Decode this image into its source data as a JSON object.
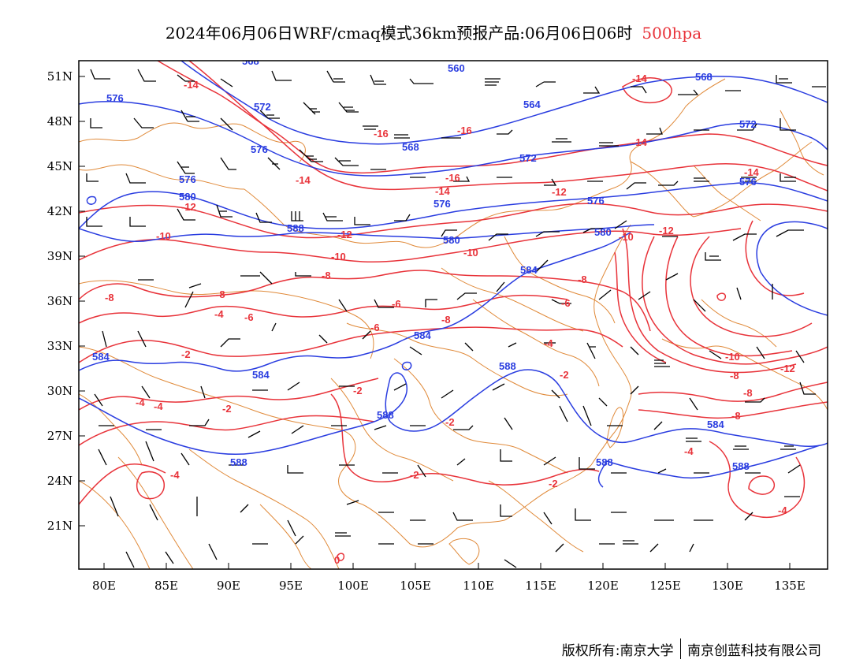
{
  "title": {
    "main": "2024年06月06日WRF/cmaq模式36km预报产品:06月06日06时",
    "level": "500hpa",
    "level_color": "#e8333a"
  },
  "axes": {
    "y_labels": [
      "51N",
      "48N",
      "45N",
      "42N",
      "39N",
      "36N",
      "33N",
      "30N",
      "27N",
      "24N",
      "21N"
    ],
    "x_labels": [
      "80E",
      "85E",
      "90E",
      "95E",
      "100E",
      "105E",
      "110E",
      "115E",
      "120E",
      "125E",
      "130E",
      "135E"
    ]
  },
  "colors": {
    "temperature_contour": "#e8333a",
    "geopotential_contour": "#2a3de0",
    "boundaries": "#e08a3a",
    "wind_barbs": "#000000"
  },
  "temperature_labels": [
    {
      "text": "-14"
    },
    {
      "text": "-14"
    },
    {
      "text": "-14"
    },
    {
      "text": "-14"
    },
    {
      "text": "-14"
    },
    {
      "text": "-14"
    },
    {
      "text": "-16"
    },
    {
      "text": "-16"
    },
    {
      "text": "-16"
    },
    {
      "text": "-12"
    },
    {
      "text": "-12"
    },
    {
      "text": "-12"
    },
    {
      "text": "-12"
    },
    {
      "text": "-12"
    },
    {
      "text": "-10"
    },
    {
      "text": "-10"
    },
    {
      "text": "-10"
    },
    {
      "text": "-10"
    },
    {
      "text": "-10"
    },
    {
      "text": "-8"
    },
    {
      "text": "-8"
    },
    {
      "text": "-8"
    },
    {
      "text": "-8"
    },
    {
      "text": "-8"
    },
    {
      "text": "-8"
    },
    {
      "text": "-8"
    },
    {
      "text": "-6"
    },
    {
      "text": "-6"
    },
    {
      "text": "-6"
    },
    {
      "text": "-4"
    },
    {
      "text": "-4"
    },
    {
      "text": "-4"
    },
    {
      "text": "-4"
    },
    {
      "text": "-4"
    },
    {
      "text": "-4"
    },
    {
      "text": "-2"
    },
    {
      "text": "-2"
    },
    {
      "text": "-2"
    },
    {
      "text": "-2"
    },
    {
      "text": "-2"
    },
    {
      "text": "-2"
    },
    {
      "text": "-2"
    },
    {
      "text": "-4"
    },
    {
      "text": "0"
    },
    {
      "text": "-8"
    },
    {
      "text": "-6"
    }
  ],
  "geopotential_labels": [
    {
      "text": "568"
    },
    {
      "text": "560"
    },
    {
      "text": "568"
    },
    {
      "text": "576"
    },
    {
      "text": "572"
    },
    {
      "text": "564"
    },
    {
      "text": "572"
    },
    {
      "text": "576"
    },
    {
      "text": "568"
    },
    {
      "text": "572"
    },
    {
      "text": "576"
    },
    {
      "text": "580"
    },
    {
      "text": "576"
    },
    {
      "text": "576"
    },
    {
      "text": "580"
    },
    {
      "text": "588"
    },
    {
      "text": "580"
    },
    {
      "text": "584"
    },
    {
      "text": "584"
    },
    {
      "text": "584"
    },
    {
      "text": "588"
    },
    {
      "text": "584"
    },
    {
      "text": "588"
    },
    {
      "text": "588"
    },
    {
      "text": "588"
    },
    {
      "text": "584"
    },
    {
      "text": "588"
    },
    {
      "text": "576"
    }
  ],
  "footer": {
    "left": "版权所有:南京大学",
    "right": "南京创蓝科技有限公司"
  }
}
